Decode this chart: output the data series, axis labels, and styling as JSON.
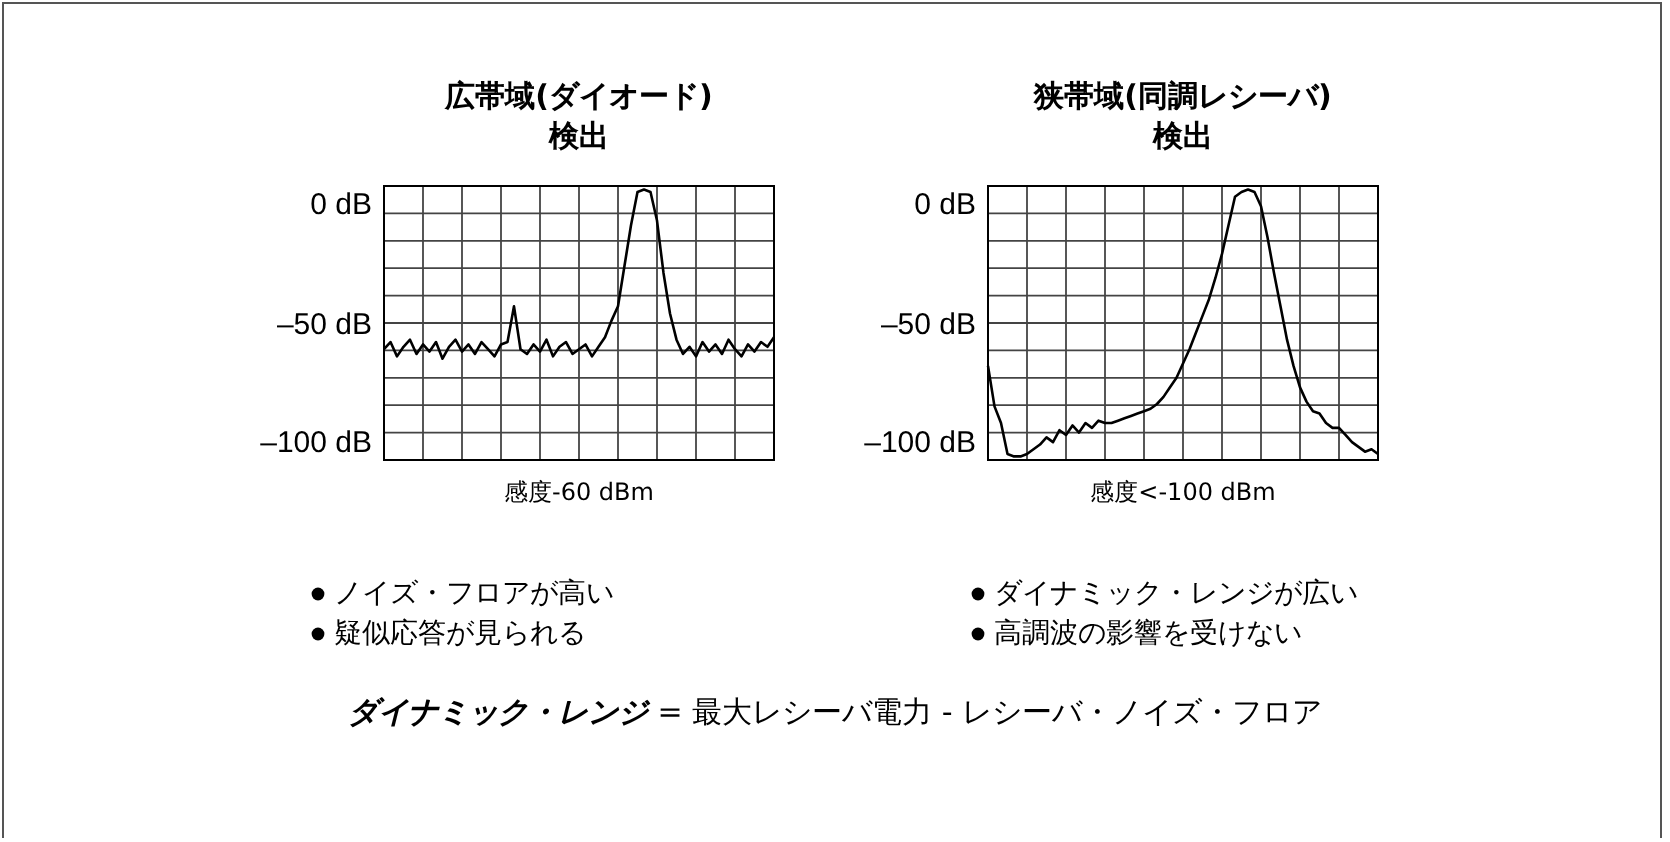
{
  "chart_data": [
    {
      "type": "line",
      "title": "広帯域(ダイオード)検出",
      "xlabel": "感度-60 dBm",
      "categories": [
        null,
        null,
        null,
        null,
        null,
        null,
        null,
        null,
        null,
        null,
        null,
        null,
        null,
        null,
        null,
        null,
        null,
        null,
        null,
        null,
        null,
        null,
        null,
        null,
        null,
        null,
        null,
        null,
        null,
        null,
        null,
        null,
        null,
        null,
        null,
        null,
        null,
        null,
        null,
        null,
        null,
        null,
        null,
        null,
        null,
        null,
        null,
        null,
        null,
        null,
        null,
        null,
        null,
        null,
        null,
        null,
        null,
        null,
        null,
        null,
        null
      ],
      "series": [
        {
          "color": "#000000",
          "values": [
            -60,
            -57,
            -63,
            -59,
            -56,
            -62,
            -58,
            -61,
            -57,
            -64,
            -59,
            -56,
            -61,
            -58,
            -62,
            -57,
            -60,
            -63,
            -58,
            -57,
            -42,
            -60,
            -62,
            -58,
            -61,
            -56,
            -63,
            -59,
            -57,
            -62,
            -60,
            -58,
            -63,
            -59,
            -55,
            -48,
            -42,
            -25,
            -8,
            6,
            7,
            6,
            -6,
            -28,
            -45,
            -56,
            -62,
            -59,
            -63,
            -57,
            -61,
            -58,
            -62,
            -56,
            -60,
            -63,
            -58,
            -61,
            -57,
            -59,
            -55
          ]
        }
      ],
      "ylim": [
        -106.5,
        8.5
      ],
      "yticks": [
        {
          "value": 0,
          "label": "0 dB"
        },
        {
          "value": -50,
          "label": "–50 dB"
        },
        {
          "value": -100,
          "label": "–100 dB"
        }
      ],
      "grid": true,
      "tick_labels": "y",
      "annotations": [
        "ノイズ・フロアが高い",
        "疑似応答が見られる",
        "**ダイナミック・レンジ** = 最大レシーバ電力 - レシーバ・ノイズ・フロア"
      ]
    },
    {
      "type": "line",
      "title": "狭帯域(同調レシーバ)検出",
      "xlabel": "感度<-100 dBm",
      "categories": [
        null,
        null,
        null,
        null,
        null,
        null,
        null,
        null,
        null,
        null,
        null,
        null,
        null,
        null,
        null,
        null,
        null,
        null,
        null,
        null,
        null,
        null,
        null,
        null,
        null,
        null,
        null,
        null,
        null,
        null,
        null,
        null,
        null,
        null,
        null,
        null,
        null,
        null,
        null,
        null,
        null,
        null,
        null,
        null,
        null,
        null,
        null,
        null,
        null,
        null,
        null,
        null,
        null,
        null,
        null,
        null,
        null,
        null,
        null,
        null,
        null
      ],
      "series": [
        {
          "color": "#000000",
          "values": [
            -67,
            -84,
            -91,
            -104,
            -105,
            -105,
            -104,
            -102,
            -100,
            -97,
            -99,
            -94,
            -96,
            -92,
            -95,
            -91,
            -93,
            -90,
            -91,
            -91,
            -90,
            -89,
            -88,
            -87,
            -86,
            -85,
            -83,
            -80,
            -76,
            -72,
            -66,
            -60,
            -53,
            -46,
            -39,
            -30,
            -20,
            -8,
            4,
            6,
            7,
            6,
            0,
            -13,
            -28,
            -42,
            -56,
            -67,
            -76,
            -82,
            -86,
            -87,
            -91,
            -93,
            -93,
            -96,
            -99,
            -101,
            -103,
            -102,
            -104
          ]
        }
      ],
      "ylim": [
        -106.5,
        8.5
      ],
      "yticks": [
        {
          "value": 0,
          "label": "0 dB"
        },
        {
          "value": -50,
          "label": "–50 dB"
        },
        {
          "value": -100,
          "label": "–100 dB"
        }
      ],
      "grid": true,
      "tick_labels": "y",
      "annotations": [
        "ダイナミック・レンジが広い",
        "高調波の影響を受けない"
      ]
    }
  ]
}
